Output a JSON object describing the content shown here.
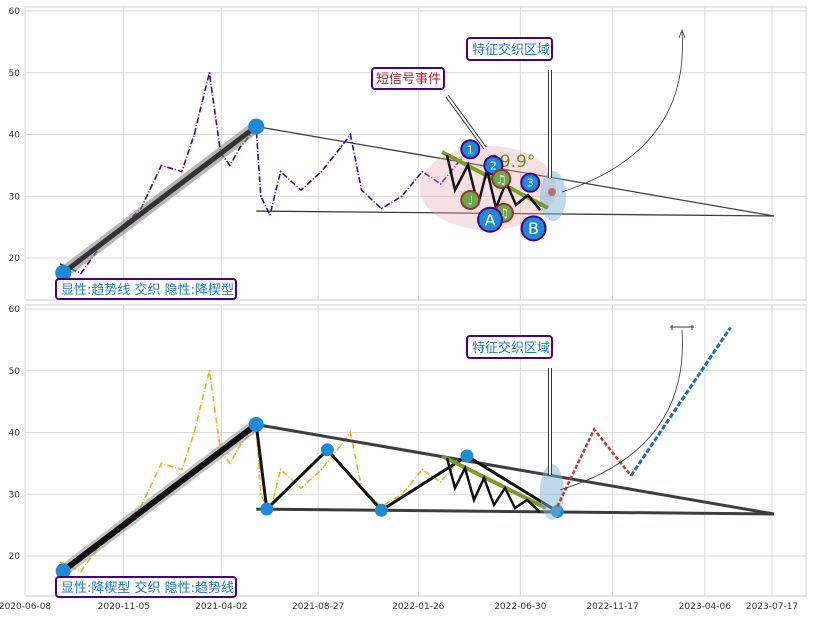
{
  "chart_data": [
    {
      "type": "line",
      "panel": "top",
      "ylim": [
        13,
        61
      ],
      "yticks": [
        "20",
        "30",
        "40",
        "50",
        "60"
      ],
      "xticks": [
        "2020-06-08",
        "2020-11-05",
        "2021-04-02",
        "2021-08-27",
        "2022-01-26",
        "2022-06-30",
        "2022-11-17",
        "2023-04-06",
        "2023-07-17"
      ],
      "grid": true,
      "price_series": {
        "color": "#4b0082",
        "style": "dashdot",
        "x": [
          "2020-08-01",
          "2020-09-01",
          "2020-10-01",
          "2020-11-01",
          "2020-12-01",
          "2021-01-01",
          "2021-02-01",
          "2021-02-20",
          "2021-03-01",
          "2021-03-15",
          "2021-04-01",
          "2021-04-15",
          "2021-05-01",
          "2021-05-25",
          "2021-06-01",
          "2021-06-15",
          "2021-07-01",
          "2021-08-01",
          "2021-09-01",
          "2021-10-01",
          "2021-10-15",
          "2021-11-01",
          "2021-12-01",
          "2022-01-01",
          "2022-02-01",
          "2022-03-01",
          "2022-04-01"
        ],
        "y": [
          19,
          17.5,
          22,
          25,
          28,
          35,
          34,
          40,
          44,
          50,
          37,
          35,
          38,
          41,
          30,
          27,
          34,
          31,
          34,
          38,
          40,
          31,
          28,
          30,
          34,
          32,
          36
        ]
      },
      "wedge": {
        "upper": {
          "x": [
            "2021-05-25",
            "2023-07-20"
          ],
          "y": [
            41.3,
            26.8
          ]
        },
        "lower": {
          "x": [
            "2021-05-25",
            "2023-07-20"
          ],
          "y": [
            27.6,
            26.8
          ]
        }
      },
      "trendline": {
        "x": [
          "2020-08-05",
          "2021-05-25"
        ],
        "y": [
          17.6,
          41.3
        ]
      },
      "signal_points": [
        {
          "label": "1",
          "x": "2022-04-15",
          "y": 37.6
        },
        {
          "label": "2",
          "x": "2022-05-20",
          "y": 35.0
        },
        {
          "label": "3",
          "x": "2022-07-15",
          "y": 32.2
        },
        {
          "label": "♩",
          "x": "2022-04-15",
          "y": 29.4
        },
        {
          "label": "♫",
          "x": "2022-06-01",
          "y": 32.8
        },
        {
          "label": "♫",
          "x": "2022-06-05",
          "y": 27.3
        },
        {
          "label": "A",
          "x": "2022-05-15",
          "y": 26.2
        },
        {
          "label": "B",
          "x": "2022-07-20",
          "y": 24.8
        }
      ],
      "angle_label": "29.9°",
      "annotations": {
        "short_signal": "短信号事件",
        "feature_zone": "特征交织区域"
      },
      "footer_label": "显性:趋势线 交织 隐性:降楔型"
    },
    {
      "type": "line",
      "panel": "bottom",
      "ylim": [
        13,
        61
      ],
      "yticks": [
        "20",
        "30",
        "40",
        "50",
        "60"
      ],
      "xticks": [
        "2020-06-08",
        "2020-11-05",
        "2021-04-02",
        "2021-08-27",
        "2022-01-26",
        "2022-06-30",
        "2022-11-17",
        "2023-04-06",
        "2023-07-17"
      ],
      "grid": true,
      "price_series": {
        "color": "#f0b020",
        "style": "dashdot",
        "x": [
          "2020-08-01",
          "2020-09-01",
          "2020-10-01",
          "2020-11-01",
          "2020-12-01",
          "2021-01-01",
          "2021-02-01",
          "2021-02-20",
          "2021-03-01",
          "2021-03-15",
          "2021-04-01",
          "2021-04-15",
          "2021-05-01",
          "2021-05-25",
          "2021-06-01",
          "2021-06-15",
          "2021-07-01",
          "2021-08-01",
          "2021-09-01",
          "2021-10-01",
          "2021-10-15",
          "2021-11-01",
          "2021-12-01",
          "2022-01-01",
          "2022-02-01",
          "2022-03-01",
          "2022-04-01"
        ],
        "y": [
          19,
          17.5,
          22,
          25,
          28,
          35,
          34,
          40,
          44,
          50,
          37,
          35,
          38,
          41,
          30,
          27,
          34,
          31,
          34,
          38,
          40,
          31,
          28,
          30,
          34,
          32,
          36
        ]
      },
      "zigzag": {
        "x": [
          "2020-08-05",
          "2021-05-25",
          "2021-06-10",
          "2021-09-10",
          "2021-12-01",
          "2022-04-10",
          "2022-08-25"
        ],
        "y": [
          17.6,
          41.3,
          27.6,
          37.2,
          27.4,
          36.2,
          27.2
        ]
      },
      "wedge": {
        "upper": {
          "x": [
            "2021-05-25",
            "2023-07-20"
          ],
          "y": [
            41.3,
            26.8
          ]
        },
        "lower": {
          "x": [
            "2021-05-25",
            "2023-07-20"
          ],
          "y": [
            27.6,
            26.8
          ]
        }
      },
      "projection": {
        "red": {
          "x": [
            "2022-08-25",
            "2022-10-20",
            "2022-12-15"
          ],
          "y": [
            28.0,
            40.5,
            33.0
          ]
        },
        "blue": {
          "x": [
            "2022-12-15",
            "2023-05-15"
          ],
          "y": [
            33.0,
            57.0
          ]
        }
      },
      "annotations": {
        "feature_zone": "特征交织区域"
      },
      "footer_label": "显性:降楔型 交织 隐性:趋势线"
    }
  ],
  "labels": {
    "top_footer": "显性:趋势线 交织 隐性:降楔型",
    "bottom_footer": "显性:降楔型 交织 隐性:趋势线",
    "short_signal": "短信号事件",
    "feature_zone_top": "特征交织区域",
    "feature_zone_bottom": "特征交织区域",
    "angle": "29.9°",
    "sig_1": "1",
    "sig_2": "2",
    "sig_3": "3",
    "sig_a": "A",
    "sig_b": "B",
    "note_1": "♩",
    "note_2": "♫",
    "note_3": "♫"
  },
  "colors": {
    "accent_blue": "#1f8ad4",
    "frame_purple": "#4b0082",
    "label_blue": "#1f7ac0",
    "label_red": "#b0203a"
  }
}
